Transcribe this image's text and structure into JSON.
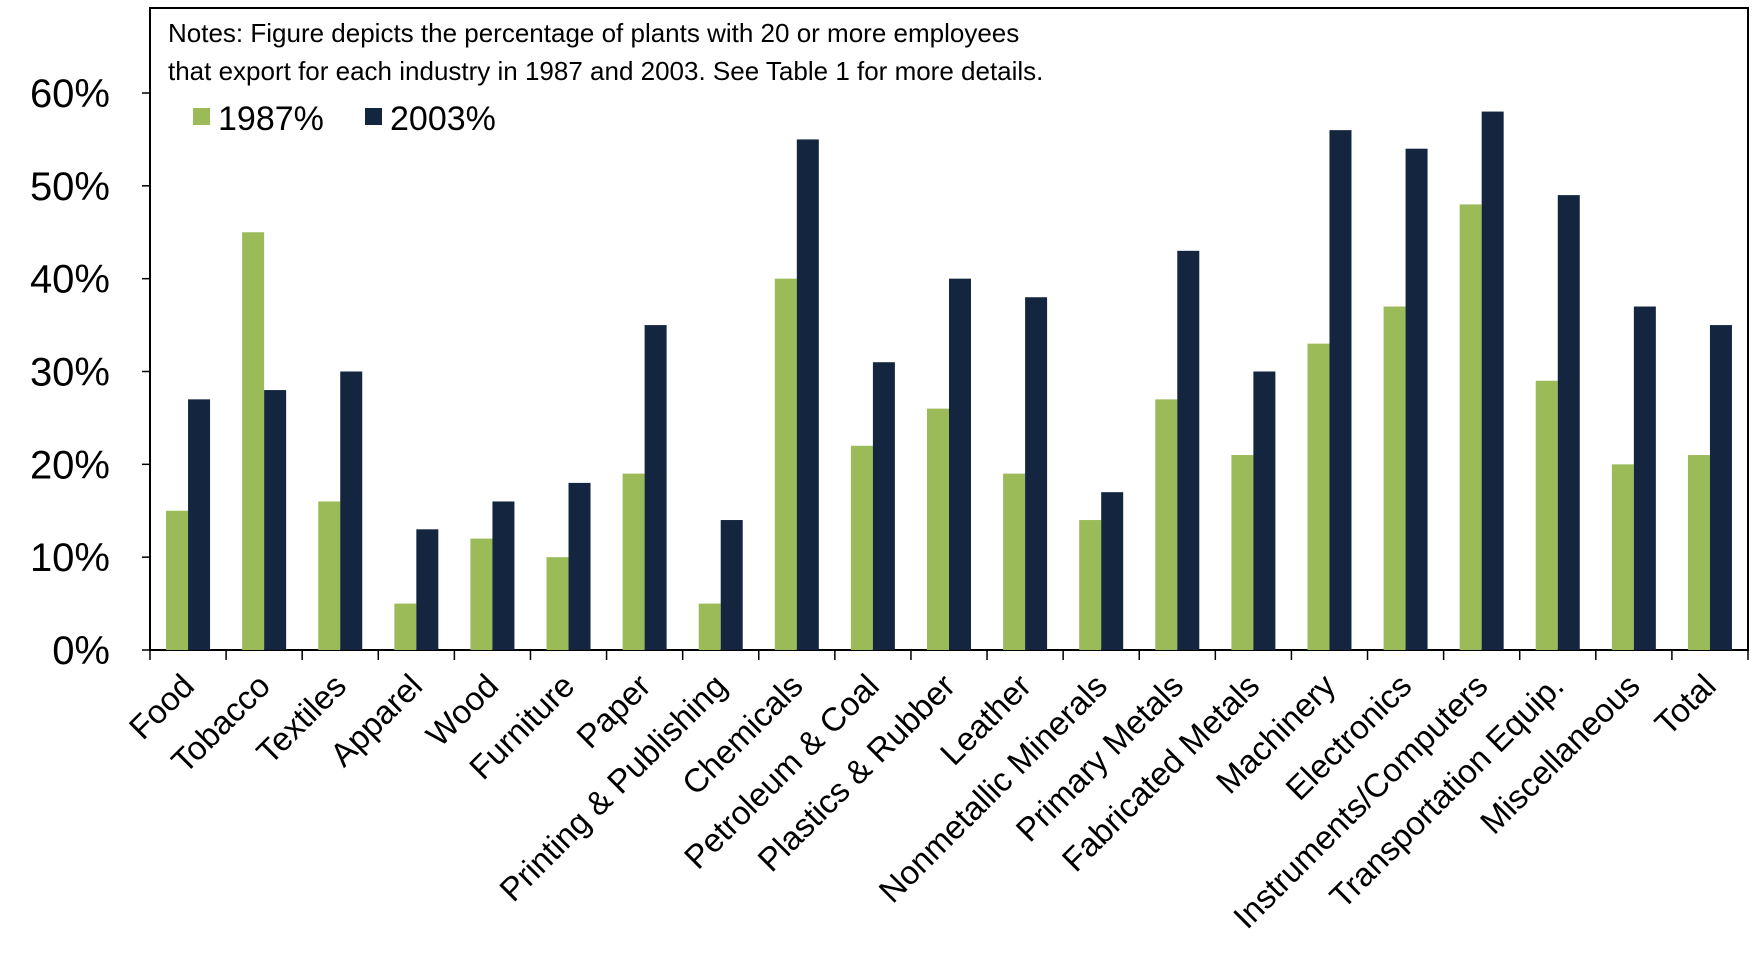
{
  "notes": {
    "line1": "Notes: Figure depicts the percentage of plants with 20 or more employees",
    "line2": "that export for each industry in 1987 and 2003.  See Table 1 for more details."
  },
  "chart_data": {
    "type": "bar",
    "title": "",
    "xlabel": "",
    "ylabel": "",
    "ylim": [
      0,
      60
    ],
    "yticks": [
      "0%",
      "10%",
      "20%",
      "30%",
      "40%",
      "50%",
      "60%"
    ],
    "grid": false,
    "legend_position": "top-left",
    "categories": [
      "Food",
      "Tobacco",
      "Textiles",
      "Apparel",
      "Wood",
      "Furniture",
      "Paper",
      "Printing & Publishing",
      "Chemicals",
      "Petroleum & Coal",
      "Plastics & Rubber",
      "Leather",
      "Nonmetallic Minerals",
      "Primary Metals",
      "Fabricated Metals",
      "Machinery",
      "Electronics",
      "Instruments/Computers",
      "Transportation Equip.",
      "Miscellaneous",
      "Total"
    ],
    "series": [
      {
        "name": "1987%",
        "color": "#9bbb59",
        "values": [
          15,
          45,
          16,
          5,
          12,
          10,
          19,
          5,
          40,
          22,
          26,
          19,
          14,
          27,
          21,
          33,
          37,
          48,
          29,
          20,
          21
        ]
      },
      {
        "name": "2003%",
        "color": "#13253f",
        "values": [
          27,
          28,
          30,
          13,
          16,
          18,
          35,
          14,
          55,
          31,
          40,
          38,
          17,
          43,
          30,
          56,
          54,
          58,
          49,
          37,
          35
        ]
      }
    ]
  }
}
